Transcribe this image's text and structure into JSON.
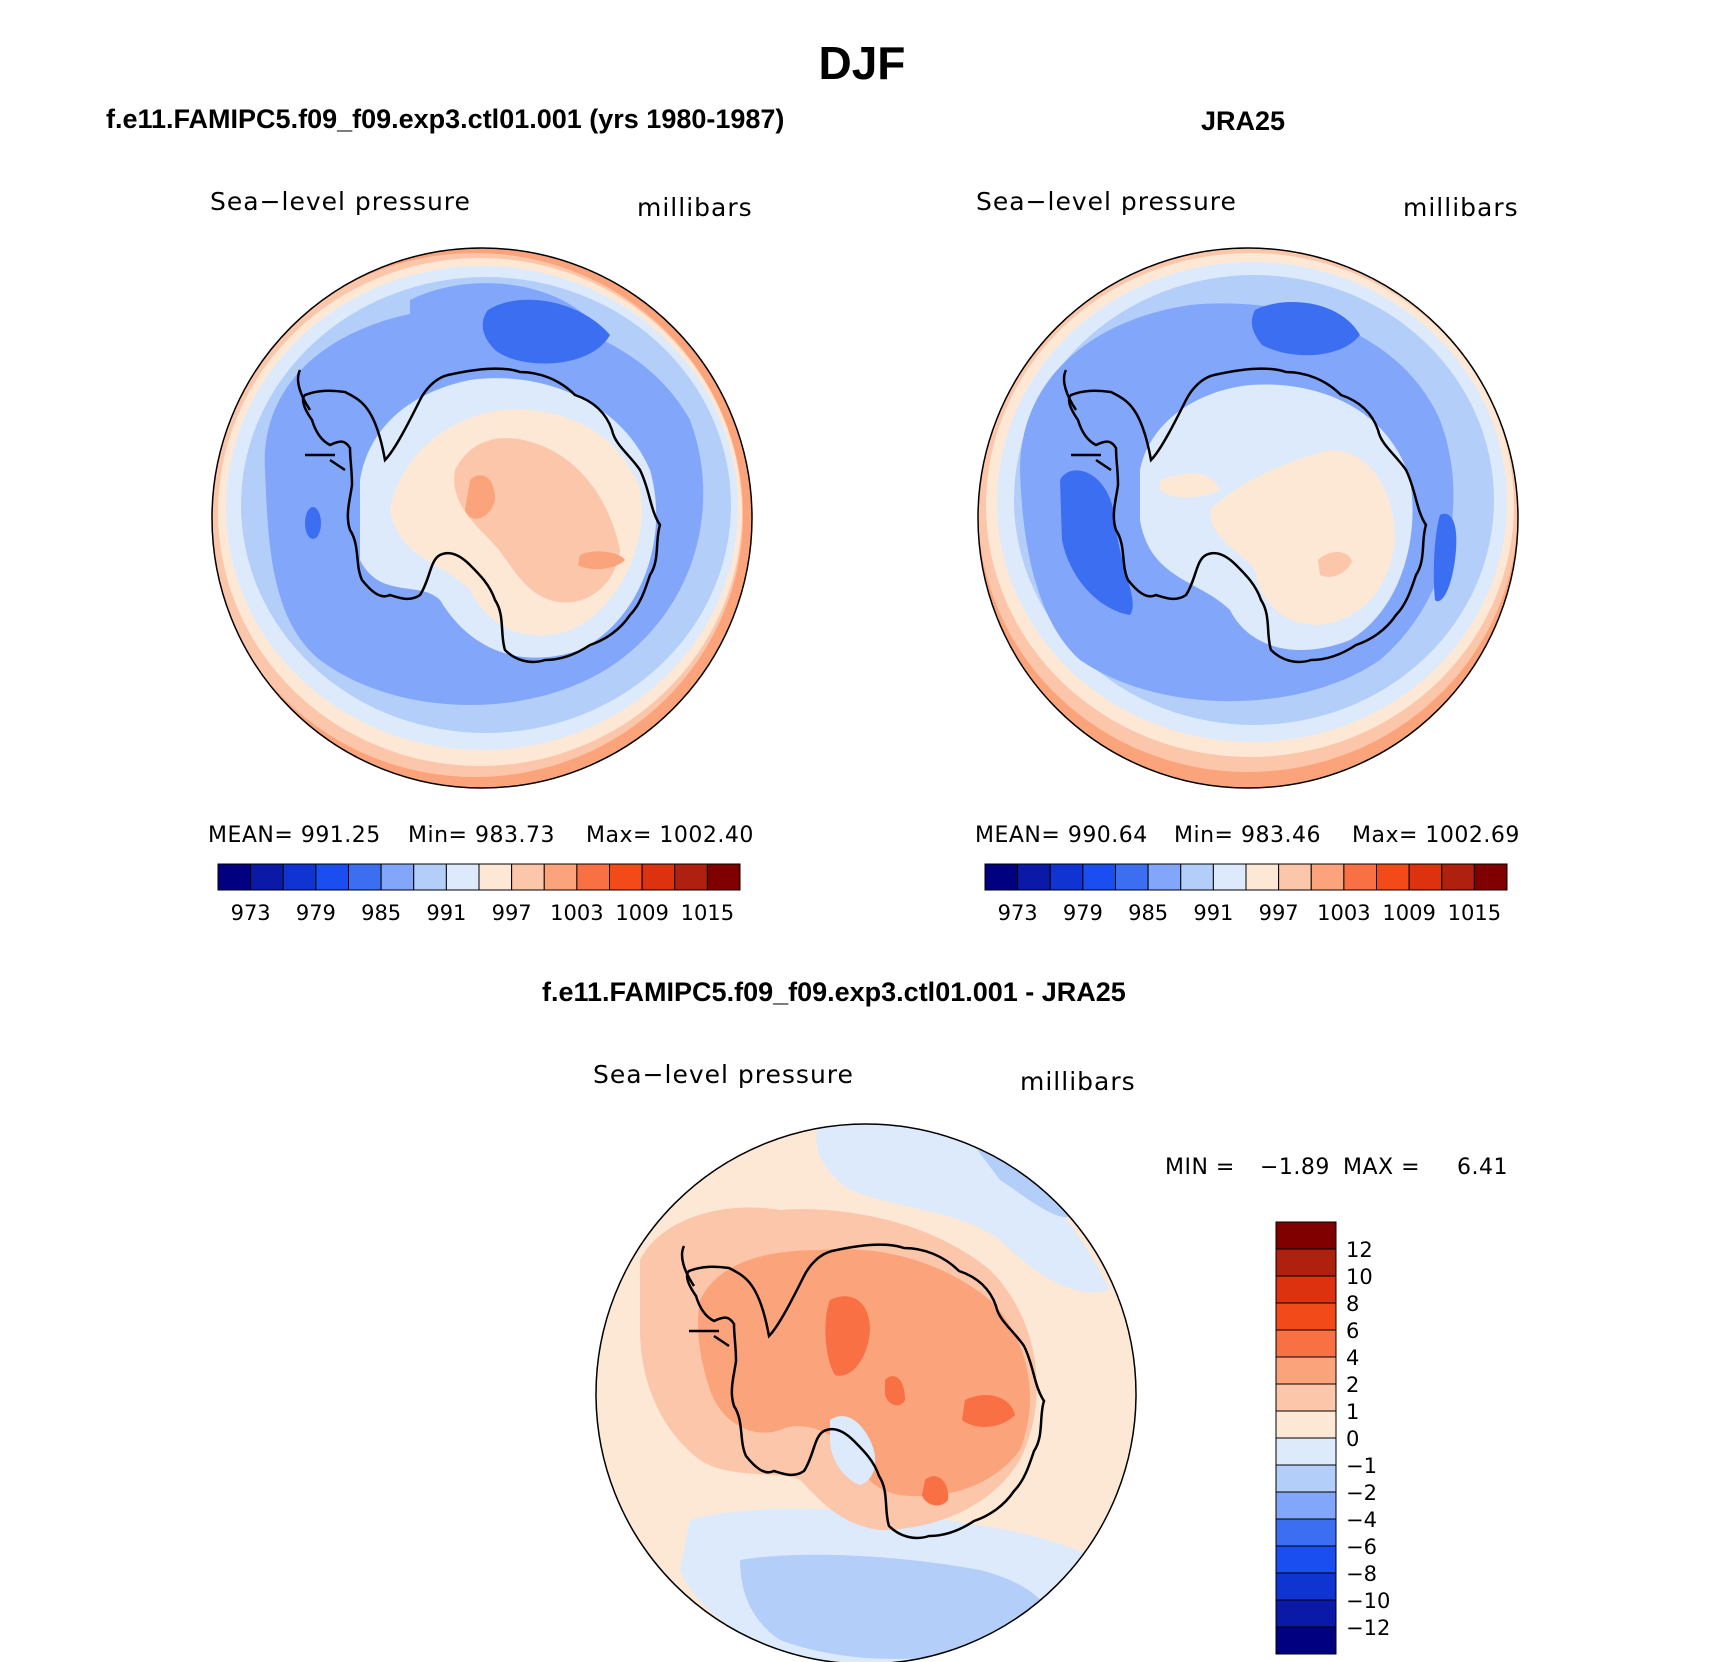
{
  "title": "DJF",
  "colors": {
    "abs_scale": [
      "#000080",
      "#0a19a8",
      "#0f34d2",
      "#1a4ef0",
      "#3c6ef2",
      "#82a6fa",
      "#b4cefa",
      "#dceafc",
      "#fde8d6",
      "#fcc6aa",
      "#fba47c",
      "#f87044",
      "#f34a1a",
      "#dd3210",
      "#b0200e",
      "#800000"
    ],
    "diff_scale": [
      "#000080",
      "#0a19a8",
      "#0f34d2",
      "#1a4ef0",
      "#3c6ef2",
      "#82a6fa",
      "#b4cefa",
      "#dceafc",
      "#fde8d6",
      "#fcc6aa",
      "#fba47c",
      "#f87044",
      "#f34a1a",
      "#dd3210",
      "#b0200e",
      "#800000"
    ],
    "coast": "#000000"
  },
  "panels": [
    {
      "title": "f.e11.FAMIPC5.f09_f09.exp3.ctl01.001 (yrs 1980-1987)",
      "variable": "Sea−level pressure",
      "units": "millibars",
      "mean_text": "MEAN=  991.25",
      "min_text": "Min=  983.73",
      "max_text": "Max=  1002.40",
      "colorbar_ticks": [
        "973",
        "979",
        "985",
        "991",
        "997",
        "1003",
        "1009",
        "1015"
      ]
    },
    {
      "title": "JRA25",
      "variable": "Sea−level pressure",
      "units": "millibars",
      "mean_text": "MEAN=  990.64",
      "min_text": "Min=  983.46",
      "max_text": "Max=  1002.69",
      "colorbar_ticks": [
        "973",
        "979",
        "985",
        "991",
        "997",
        "1003",
        "1009",
        "1015"
      ]
    },
    {
      "title": "f.e11.FAMIPC5.f09_f09.exp3.ctl01.001 - JRA25",
      "variable": "Sea−level pressure",
      "units": "millibars",
      "min_label": "MIN =",
      "min_value": "−1.89",
      "max_label": "MAX =",
      "max_value": "6.41",
      "colorbar_ticks": [
        "12",
        "10",
        "8",
        "6",
        "4",
        "2",
        "1",
        "0",
        "−1",
        "−2",
        "−4",
        "−6",
        "−8",
        "−10",
        "−12"
      ]
    }
  ]
}
